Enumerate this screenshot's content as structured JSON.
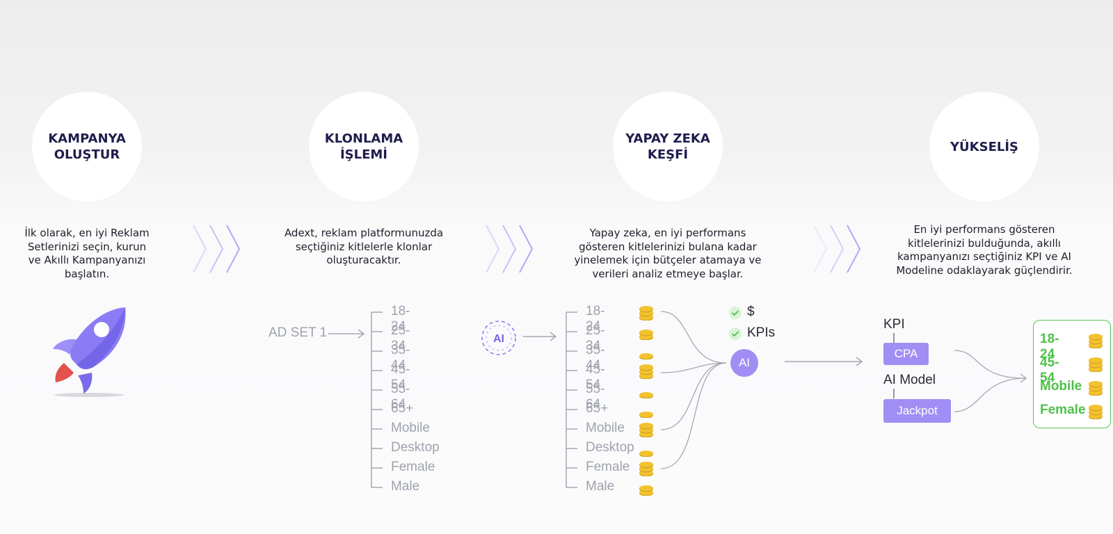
{
  "steps": [
    {
      "title": "KAMPANYA\nOLUŞTUR",
      "desc": "İlk olarak, en iyi Reklam\nSetlerinizi seçin, kurun\nve Akıllı Kampanyanızı\nbaşlatın."
    },
    {
      "title": "KLONLAMA\nİŞLEMİ",
      "desc": "Adext, reklam platformunuzda\nseçtiğiniz kitlelerle klonlar\noluşturacaktır."
    },
    {
      "title": "YAPAY ZEKA\nKEŞFİ",
      "desc": "Yapay zeka, en iyi performans\ngösteren kitlelerinizi bulana kadar\nyinelemek için bütçeler atamaya ve\nverileri analiz etmeye başlar."
    },
    {
      "title": "YÜKSELİŞ",
      "desc": "En iyi performans gösteren\nkitlelerinizi bulduğunda, akıllı\nkampanyanızı seçtiğiniz KPI ve AI\nModeline odaklayarak güçlendirir."
    }
  ],
  "clone": {
    "source_label": "AD SET 1",
    "audiences": [
      "18-24",
      "25-34",
      "35-44",
      "45-54",
      "55-64",
      "65+",
      "Mobile",
      "Desktop",
      "Female",
      "Male"
    ]
  },
  "discovery": {
    "badge_label": "AI",
    "audiences": [
      "18-24",
      "25-34",
      "35-44",
      "45-54",
      "55-64",
      "65+",
      "Mobile",
      "Desktop",
      "Female",
      "Male"
    ],
    "coin_stack_counts": [
      3,
      2,
      1,
      3,
      1,
      1,
      3,
      1,
      3,
      2
    ],
    "checks": [
      "$",
      "KPIs"
    ],
    "ai_node_label": "AI"
  },
  "boost": {
    "kpi_label": "KPI",
    "kpi_value": "CPA",
    "model_label": "AI Model",
    "model_value": "Jackpot",
    "winners": [
      "18-24",
      "45-54",
      "Mobile",
      "Female"
    ]
  },
  "colors": {
    "title": "#1f1c4d",
    "accent_purple": "#a18ef4",
    "rocket_purple": "#8b7cf6",
    "winner_green": "#4ec04a",
    "coin_gold": "#f2c230",
    "muted_gray": "#9ea2ad"
  }
}
